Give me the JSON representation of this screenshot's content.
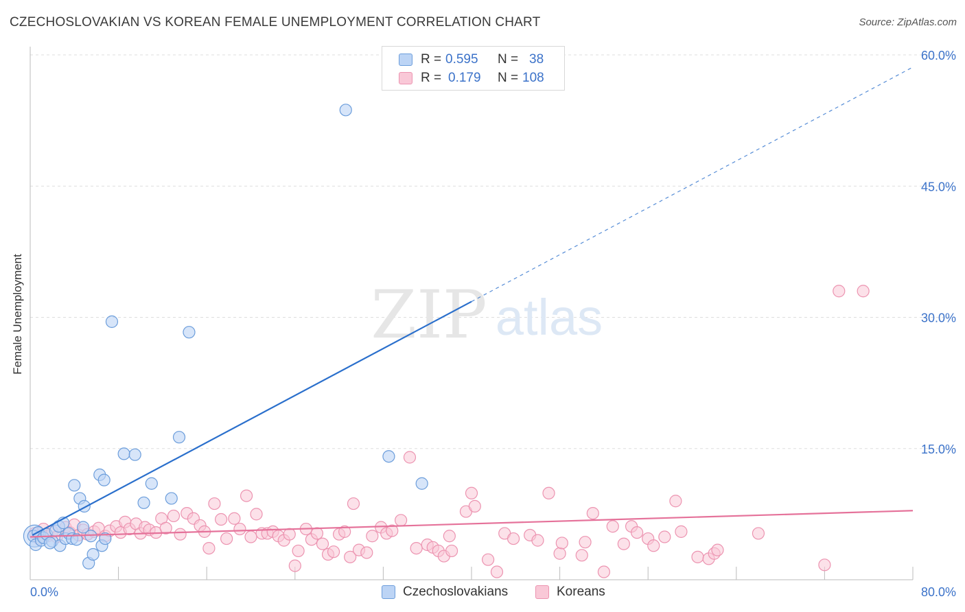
{
  "title": "CZECHOSLOVAKIAN VS KOREAN FEMALE UNEMPLOYMENT CORRELATION CHART",
  "source": "Source: ZipAtlas.com",
  "watermark": {
    "zip": "ZIP",
    "atlas": "atlas"
  },
  "legend": {
    "r_label": "R =",
    "n_label": "N =",
    "czech": {
      "r": "0.595",
      "n": "38"
    },
    "korean": {
      "r": "0.179",
      "n": "108"
    }
  },
  "bottom_legend": {
    "czech": "Czechoslovakians",
    "korean": "Koreans"
  },
  "colors": {
    "czech_fill": "#bcd4f5",
    "czech_stroke": "#6b9ddb",
    "czech_line": "#2a6fcc",
    "korean_fill": "#f9c8d7",
    "korean_stroke": "#ec93b0",
    "korean_line": "#e5729a",
    "tick_text": "#3b72c9",
    "grid": "#dddddd"
  },
  "chart_data": {
    "type": "scatter",
    "title": "CZECHOSLOVAKIAN VS KOREAN FEMALE UNEMPLOYMENT CORRELATION CHART",
    "xlabel": "",
    "ylabel": "Female Unemployment",
    "xlim": [
      0,
      80
    ],
    "ylim": [
      0,
      60
    ],
    "x_tick_labels": [
      "0.0%",
      "80.0%"
    ],
    "y_ticks": [
      15,
      30,
      45,
      60
    ],
    "y_tick_labels": [
      "15.0%",
      "30.0%",
      "45.0%",
      "60.0%"
    ],
    "grid": true,
    "series": [
      {
        "name": "Czechoslovakians",
        "r": 0.595,
        "n": 38,
        "trend": {
          "x": [
            0.2,
            40
          ],
          "y": [
            5.1,
            31.8
          ],
          "dashed_to": [
            80,
            58.6
          ]
        },
        "points": [
          {
            "x": 0.3,
            "y": 5.0
          },
          {
            "x": 0.5,
            "y": 4.0
          },
          {
            "x": 0.7,
            "y": 5.4
          },
          {
            "x": 1.0,
            "y": 4.5
          },
          {
            "x": 1.2,
            "y": 4.8
          },
          {
            "x": 1.5,
            "y": 5.2
          },
          {
            "x": 2.0,
            "y": 4.4
          },
          {
            "x": 2.3,
            "y": 5.6
          },
          {
            "x": 2.6,
            "y": 6.1
          },
          {
            "x": 2.7,
            "y": 3.9
          },
          {
            "x": 3.0,
            "y": 6.5
          },
          {
            "x": 3.2,
            "y": 4.7
          },
          {
            "x": 3.5,
            "y": 5.3
          },
          {
            "x": 3.8,
            "y": 4.7
          },
          {
            "x": 4.0,
            "y": 10.8
          },
          {
            "x": 4.2,
            "y": 4.6
          },
          {
            "x": 4.5,
            "y": 9.3
          },
          {
            "x": 4.8,
            "y": 6.0
          },
          {
            "x": 4.9,
            "y": 8.4
          },
          {
            "x": 5.3,
            "y": 1.9
          },
          {
            "x": 5.5,
            "y": 5.0
          },
          {
            "x": 5.7,
            "y": 2.9
          },
          {
            "x": 6.3,
            "y": 12.0
          },
          {
            "x": 6.5,
            "y": 3.9
          },
          {
            "x": 6.8,
            "y": 4.7
          },
          {
            "x": 6.7,
            "y": 11.4
          },
          {
            "x": 7.4,
            "y": 29.5
          },
          {
            "x": 8.5,
            "y": 14.4
          },
          {
            "x": 10.3,
            "y": 8.8
          },
          {
            "x": 11.0,
            "y": 11.0
          },
          {
            "x": 12.8,
            "y": 9.3
          },
          {
            "x": 13.5,
            "y": 16.3
          },
          {
            "x": 14.4,
            "y": 28.3
          },
          {
            "x": 28.6,
            "y": 53.7
          },
          {
            "x": 32.5,
            "y": 14.1
          },
          {
            "x": 35.5,
            "y": 11.0
          },
          {
            "x": 9.5,
            "y": 14.3
          },
          {
            "x": 1.8,
            "y": 4.2
          }
        ]
      },
      {
        "name": "Koreans",
        "r": 0.179,
        "n": 108,
        "trend": {
          "x": [
            0,
            80
          ],
          "y": [
            4.9,
            7.9
          ]
        },
        "points": [
          {
            "x": 0.4,
            "y": 5.3
          },
          {
            "x": 0.8,
            "y": 4.7
          },
          {
            "x": 1.2,
            "y": 5.8
          },
          {
            "x": 1.6,
            "y": 5.0
          },
          {
            "x": 2.0,
            "y": 5.5
          },
          {
            "x": 2.4,
            "y": 4.9
          },
          {
            "x": 3.2,
            "y": 6.0
          },
          {
            "x": 3.6,
            "y": 5.4
          },
          {
            "x": 4.0,
            "y": 6.3
          },
          {
            "x": 4.4,
            "y": 5.1
          },
          {
            "x": 4.8,
            "y": 5.7
          },
          {
            "x": 5.2,
            "y": 5.2
          },
          {
            "x": 5.8,
            "y": 5.5
          },
          {
            "x": 6.2,
            "y": 5.9
          },
          {
            "x": 6.8,
            "y": 5.0
          },
          {
            "x": 7.2,
            "y": 5.6
          },
          {
            "x": 7.8,
            "y": 6.1
          },
          {
            "x": 8.2,
            "y": 5.4
          },
          {
            "x": 8.6,
            "y": 6.6
          },
          {
            "x": 9.0,
            "y": 5.8
          },
          {
            "x": 9.6,
            "y": 6.4
          },
          {
            "x": 10.0,
            "y": 5.3
          },
          {
            "x": 10.4,
            "y": 6.0
          },
          {
            "x": 10.8,
            "y": 5.7
          },
          {
            "x": 11.4,
            "y": 5.4
          },
          {
            "x": 11.9,
            "y": 7.0
          },
          {
            "x": 12.3,
            "y": 5.9
          },
          {
            "x": 13.0,
            "y": 7.3
          },
          {
            "x": 13.6,
            "y": 5.2
          },
          {
            "x": 14.2,
            "y": 7.6
          },
          {
            "x": 14.8,
            "y": 7.0
          },
          {
            "x": 15.4,
            "y": 6.2
          },
          {
            "x": 15.8,
            "y": 5.5
          },
          {
            "x": 16.2,
            "y": 3.6
          },
          {
            "x": 16.7,
            "y": 8.7
          },
          {
            "x": 17.3,
            "y": 6.9
          },
          {
            "x": 17.8,
            "y": 4.7
          },
          {
            "x": 18.5,
            "y": 7.0
          },
          {
            "x": 19.0,
            "y": 5.8
          },
          {
            "x": 19.6,
            "y": 9.6
          },
          {
            "x": 20.0,
            "y": 4.9
          },
          {
            "x": 20.5,
            "y": 7.5
          },
          {
            "x": 21.0,
            "y": 5.3
          },
          {
            "x": 21.5,
            "y": 5.3
          },
          {
            "x": 22.0,
            "y": 5.5
          },
          {
            "x": 22.5,
            "y": 5.0
          },
          {
            "x": 23.0,
            "y": 4.5
          },
          {
            "x": 23.5,
            "y": 5.2
          },
          {
            "x": 24.0,
            "y": 1.6
          },
          {
            "x": 24.3,
            "y": 3.3
          },
          {
            "x": 25.0,
            "y": 5.8
          },
          {
            "x": 25.5,
            "y": 4.6
          },
          {
            "x": 26.0,
            "y": 5.3
          },
          {
            "x": 26.5,
            "y": 4.1
          },
          {
            "x": 27.0,
            "y": 2.9
          },
          {
            "x": 27.5,
            "y": 3.2
          },
          {
            "x": 28.0,
            "y": 5.2
          },
          {
            "x": 28.5,
            "y": 5.5
          },
          {
            "x": 29.0,
            "y": 2.6
          },
          {
            "x": 29.3,
            "y": 8.7
          },
          {
            "x": 29.8,
            "y": 3.4
          },
          {
            "x": 30.5,
            "y": 3.1
          },
          {
            "x": 31.0,
            "y": 5.0
          },
          {
            "x": 31.8,
            "y": 6.0
          },
          {
            "x": 32.3,
            "y": 5.3
          },
          {
            "x": 32.8,
            "y": 5.6
          },
          {
            "x": 33.6,
            "y": 6.8
          },
          {
            "x": 34.4,
            "y": 14.0
          },
          {
            "x": 35.0,
            "y": 3.6
          },
          {
            "x": 36.0,
            "y": 4.0
          },
          {
            "x": 36.5,
            "y": 3.7
          },
          {
            "x": 37.0,
            "y": 3.3
          },
          {
            "x": 37.5,
            "y": 2.7
          },
          {
            "x": 38.0,
            "y": 5.0
          },
          {
            "x": 38.2,
            "y": 3.3
          },
          {
            "x": 39.5,
            "y": 7.8
          },
          {
            "x": 40.0,
            "y": 9.9
          },
          {
            "x": 40.3,
            "y": 8.4
          },
          {
            "x": 41.5,
            "y": 2.3
          },
          {
            "x": 42.3,
            "y": 0.9
          },
          {
            "x": 43.0,
            "y": 5.3
          },
          {
            "x": 43.8,
            "y": 4.7
          },
          {
            "x": 45.3,
            "y": 5.1
          },
          {
            "x": 46.0,
            "y": 4.5
          },
          {
            "x": 47.0,
            "y": 9.9
          },
          {
            "x": 48.0,
            "y": 3.0
          },
          {
            "x": 48.2,
            "y": 4.2
          },
          {
            "x": 50.0,
            "y": 2.8
          },
          {
            "x": 50.3,
            "y": 4.3
          },
          {
            "x": 51.0,
            "y": 7.6
          },
          {
            "x": 52.0,
            "y": 0.9
          },
          {
            "x": 52.8,
            "y": 6.1
          },
          {
            "x": 53.8,
            "y": 4.1
          },
          {
            "x": 54.5,
            "y": 6.1
          },
          {
            "x": 55.0,
            "y": 5.4
          },
          {
            "x": 56.0,
            "y": 4.7
          },
          {
            "x": 56.5,
            "y": 3.9
          },
          {
            "x": 57.5,
            "y": 4.9
          },
          {
            "x": 58.5,
            "y": 9.0
          },
          {
            "x": 59.0,
            "y": 5.5
          },
          {
            "x": 60.5,
            "y": 2.6
          },
          {
            "x": 61.5,
            "y": 2.4
          },
          {
            "x": 62.0,
            "y": 3.0
          },
          {
            "x": 62.3,
            "y": 3.4
          },
          {
            "x": 66.0,
            "y": 5.3
          },
          {
            "x": 72.0,
            "y": 1.7
          },
          {
            "x": 73.3,
            "y": 33.0
          },
          {
            "x": 75.5,
            "y": 33.0
          }
        ]
      }
    ]
  }
}
